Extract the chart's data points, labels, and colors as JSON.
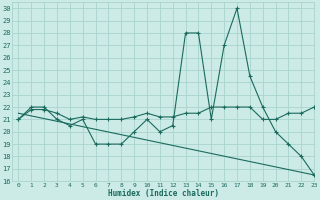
{
  "xlabel": "Humidex (Indice chaleur)",
  "bg_color": "#cceae6",
  "grid_color": "#aad4cf",
  "line_color": "#1a6b5e",
  "xlim": [
    -0.5,
    23
  ],
  "ylim": [
    16,
    30.5
  ],
  "yticks": [
    16,
    17,
    18,
    19,
    20,
    21,
    22,
    23,
    24,
    25,
    26,
    27,
    28,
    29,
    30
  ],
  "xticks": [
    0,
    1,
    2,
    3,
    4,
    5,
    6,
    7,
    8,
    9,
    10,
    11,
    12,
    13,
    14,
    15,
    16,
    17,
    18,
    19,
    20,
    21,
    22,
    23
  ],
  "series": [
    {
      "x": [
        0,
        1,
        2,
        3,
        4,
        5,
        6,
        7,
        8,
        9,
        10,
        11,
        12,
        13,
        14,
        15,
        16,
        17,
        18,
        19,
        20,
        21,
        22,
        23
      ],
      "y": [
        21,
        22,
        22,
        21,
        20.5,
        21,
        19,
        19,
        19,
        20,
        21,
        20,
        20.5,
        28,
        28,
        21,
        27,
        30,
        24.5,
        22,
        20,
        19,
        18,
        16.5
      ],
      "marker": true
    },
    {
      "x": [
        0,
        1,
        2,
        3,
        4,
        5,
        6,
        7,
        8,
        9,
        10,
        11,
        12,
        13,
        14,
        15,
        16,
        17,
        18,
        19,
        20,
        21,
        22,
        23
      ],
      "y": [
        21,
        21.8,
        21.8,
        21.5,
        21,
        21.2,
        21,
        21,
        21,
        21.2,
        21.5,
        21.2,
        21.2,
        21.5,
        21.5,
        22,
        22,
        22,
        22,
        21,
        21,
        21.5,
        21.5,
        22
      ],
      "marker": true
    },
    {
      "x": [
        0,
        23
      ],
      "y": [
        21.5,
        16.5
      ],
      "marker": false
    }
  ]
}
